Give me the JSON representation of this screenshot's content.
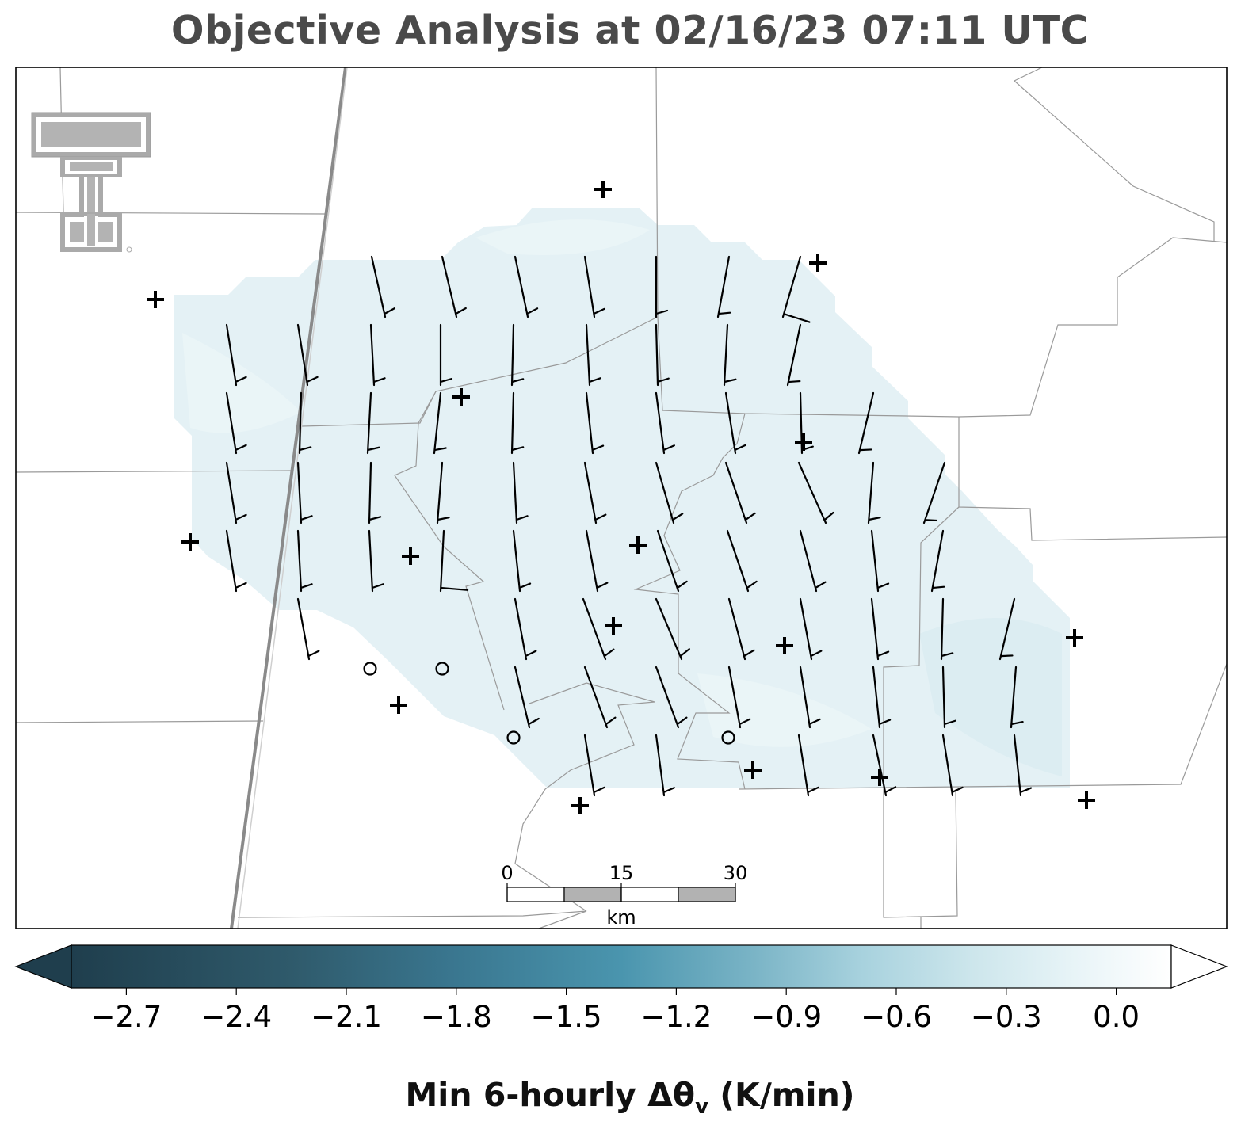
{
  "title": "Objective Analysis at 02/16/23 07:11 UTC",
  "colorbar": {
    "label_prefix": "Min 6-hourly Δθ",
    "label_sub": "v",
    "label_suffix": " (K/min)",
    "ticks": [
      "−2.7",
      "−2.4",
      "−2.1",
      "−1.8",
      "−1.5",
      "−1.2",
      "−0.9",
      "−0.6",
      "−0.3",
      "0.0"
    ],
    "min": -2.85,
    "max": 0.15,
    "extend": "both",
    "colors": [
      "#1f3e4d",
      "#2f5a6b",
      "#3a7790",
      "#4a95ae",
      "#7ab4c6",
      "#a8d2de",
      "#cde6ec",
      "#eaf5f8",
      "#ffffff"
    ]
  },
  "scalebar": {
    "ticks": [
      "0",
      "15",
      "30"
    ],
    "unit": "km"
  },
  "logo": "texas-tech-double-t-logo",
  "colors": {
    "field": "#e3f0f4",
    "boundary": "#9a9a9a",
    "highway": "#8c8c8c",
    "barb": "#000000"
  },
  "analysis_field_value": -0.2,
  "station_markers": {
    "plus": "station-observation",
    "circle": "calm-wind"
  }
}
